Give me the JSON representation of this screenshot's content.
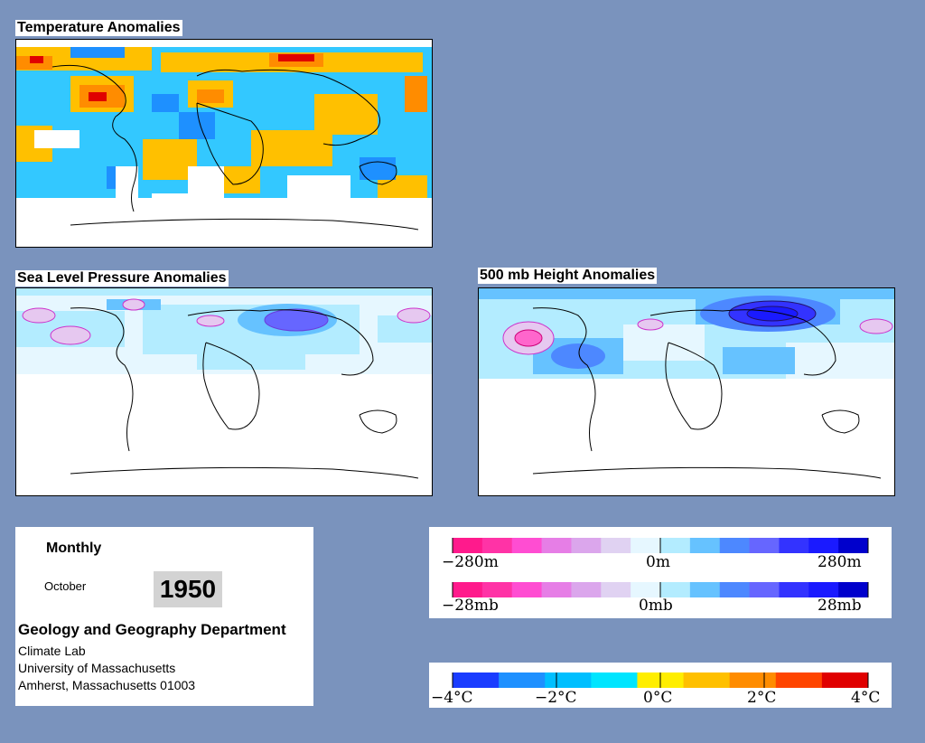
{
  "panels": {
    "temperature": {
      "title": "Temperature Anomalies"
    },
    "pressure": {
      "title": "Sea Level Pressure Anomalies"
    },
    "height": {
      "title": "500 mb Height Anomalies"
    }
  },
  "info": {
    "period": "Monthly",
    "month": "October",
    "year": "1950",
    "department": "Geology and Geography Department",
    "lab": "Climate Lab",
    "university": "University of Massachusetts",
    "address": "Amherst, Massachusetts 01003"
  },
  "legends": {
    "height": {
      "min": "−280m",
      "mid": "0m",
      "max": "280m"
    },
    "pressure": {
      "min": "−28mb",
      "mid": "0mb",
      "max": "28mb"
    },
    "temperature": {
      "min": "−4°C",
      "lowmid": "−2°C",
      "mid": "0°C",
      "highmid": "2°C",
      "max": "4°C"
    }
  },
  "colors": {
    "background": "#7a93bd",
    "anomaly_scale": [
      "#ff1a8c",
      "#ff33a6",
      "#ff4dd2",
      "#e67ee6",
      "#dba6ec",
      "#e0d2f2",
      "#e6f7ff",
      "#b3ecff",
      "#66c2ff",
      "#4d88ff",
      "#6666ff",
      "#3333ff",
      "#1a1aff",
      "#0000cc"
    ],
    "temperature_scale": [
      "#1a3cff",
      "#1e90ff",
      "#00bfff",
      "#00e5ff",
      "#ffee00",
      "#ffc000",
      "#ff8c00",
      "#ff4500",
      "#e00000"
    ]
  }
}
